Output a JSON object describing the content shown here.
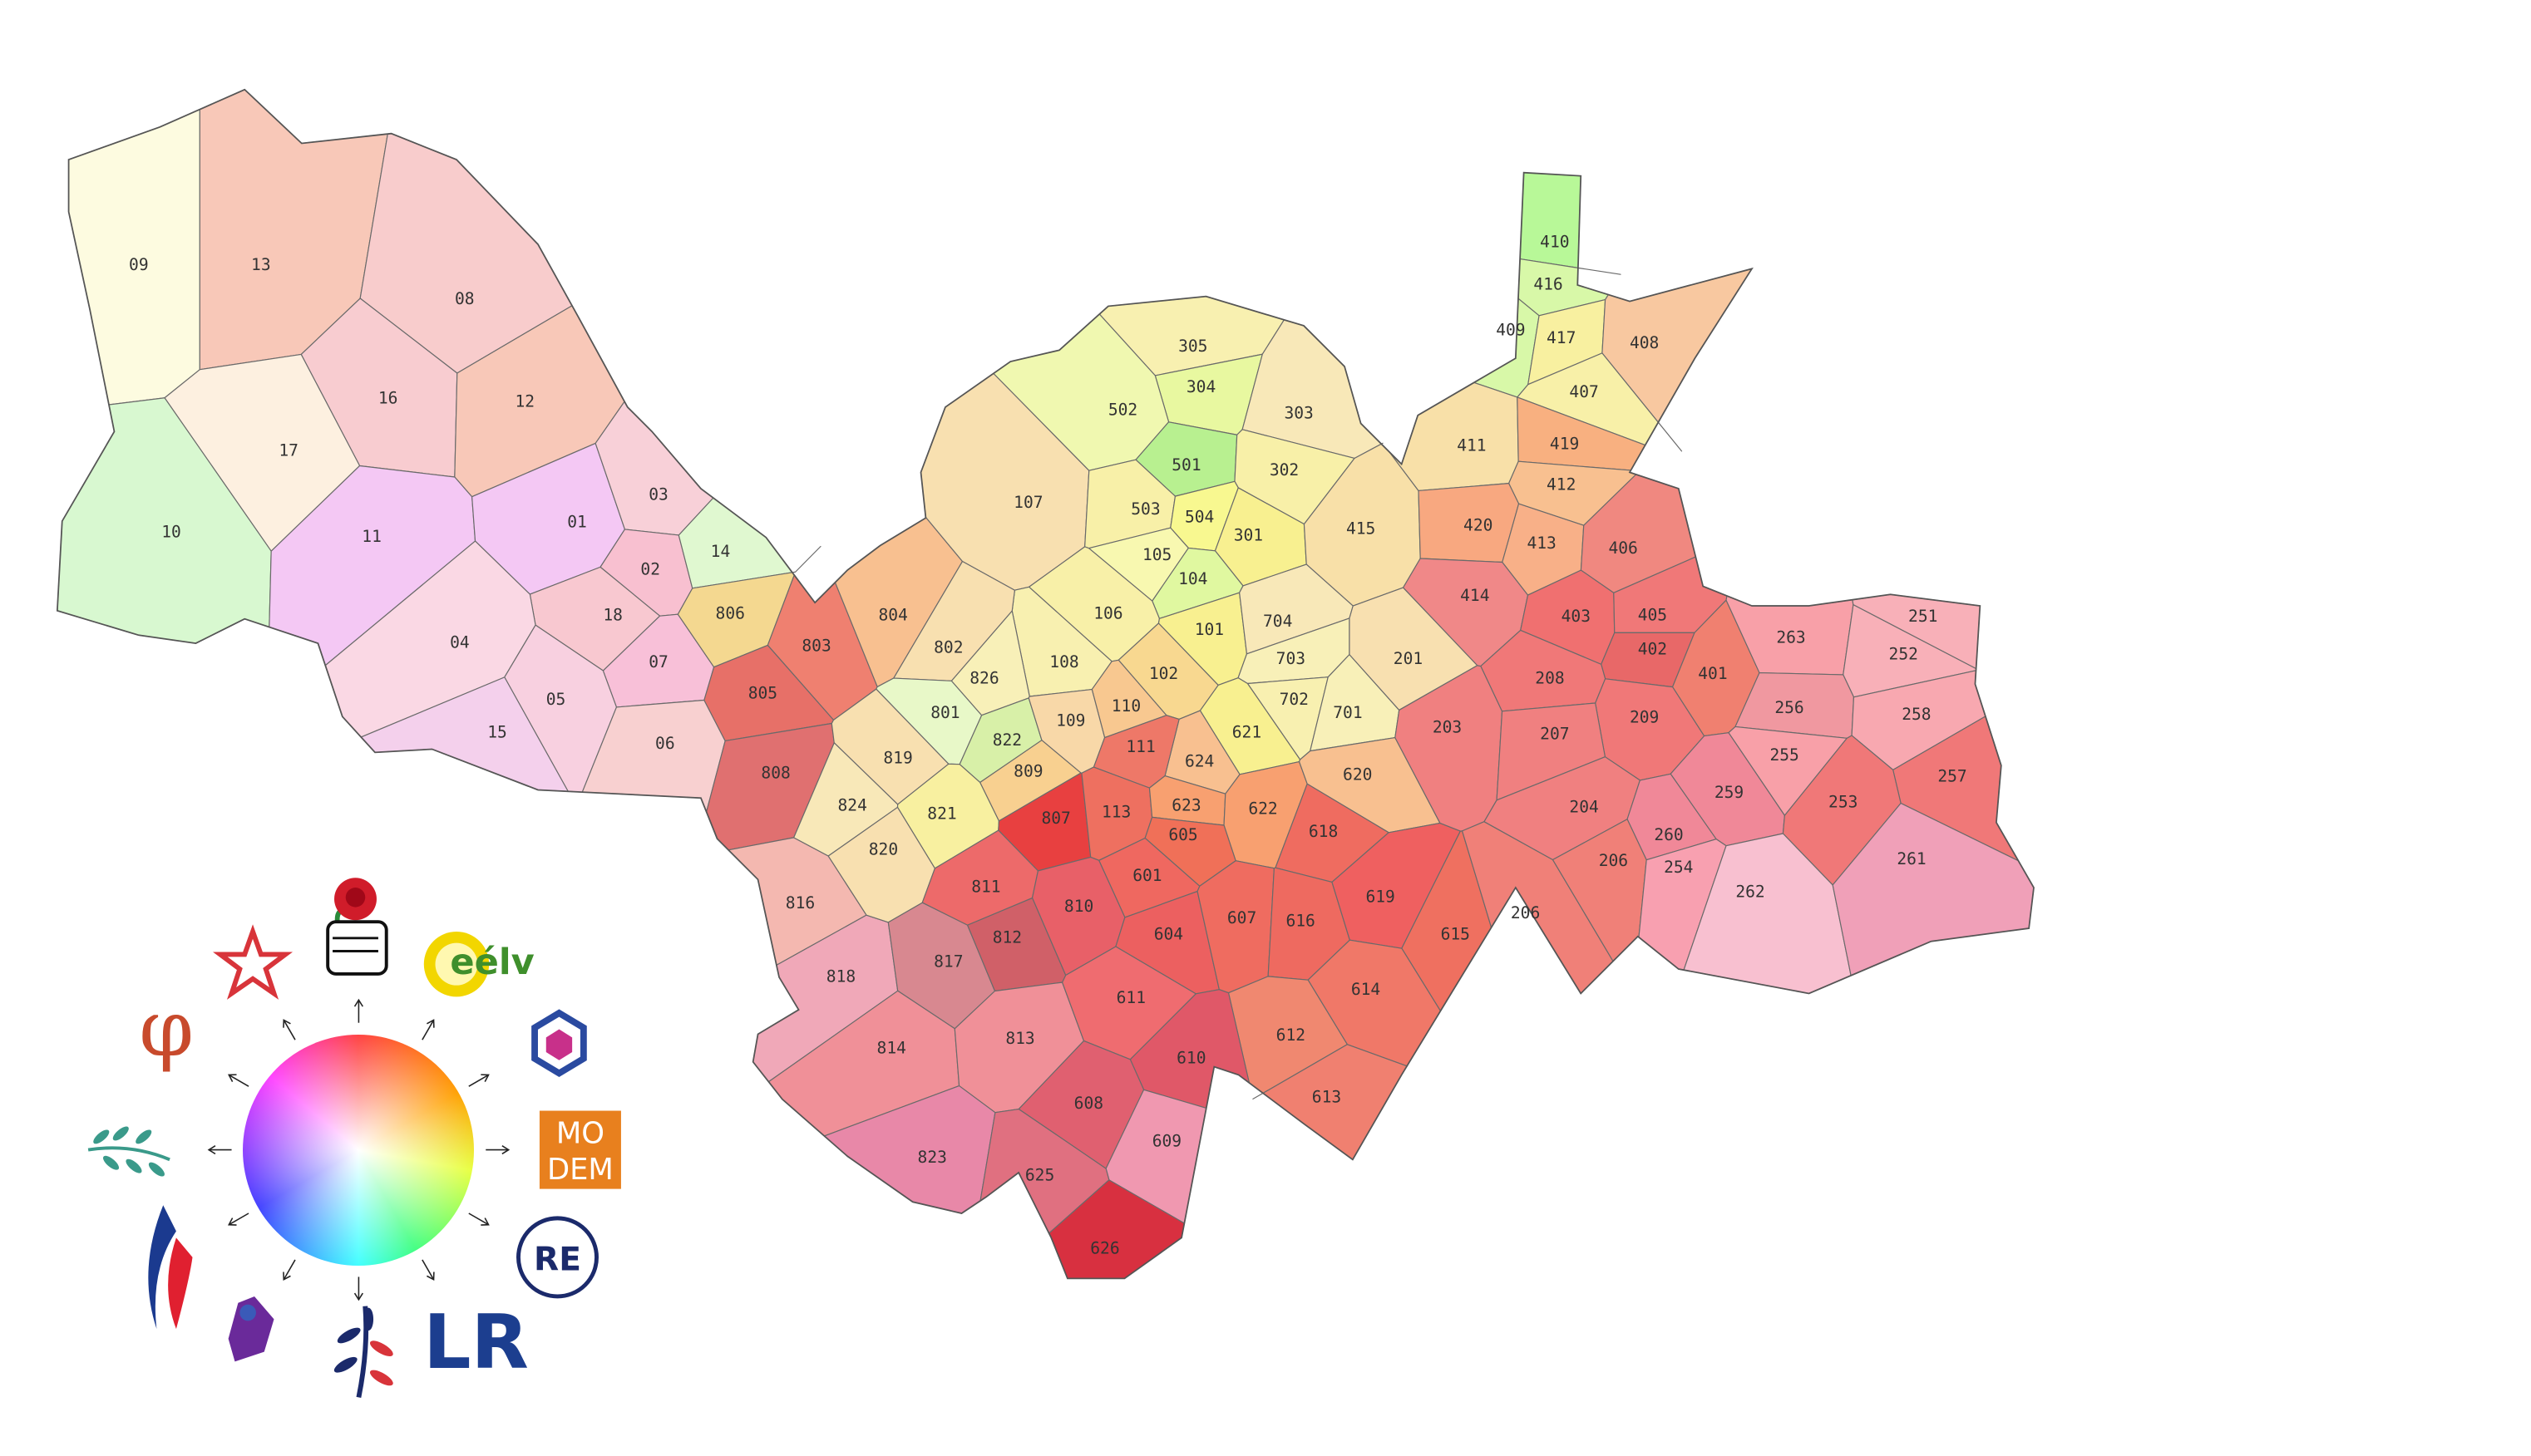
{
  "regions": [
    {
      "label": "09",
      "color": "#fdfbe0"
    },
    {
      "label": "13",
      "color": "#f8c8b8"
    },
    {
      "label": "08",
      "color": "#f8cccc"
    },
    {
      "label": "16",
      "color": "#f8ccd0"
    },
    {
      "label": "12",
      "color": "#f8c8b8"
    },
    {
      "label": "17",
      "color": "#fdf0e0"
    },
    {
      "label": "10",
      "color": "#d8f8d0"
    },
    {
      "label": "11",
      "color": "#f4c8f4"
    },
    {
      "label": "01",
      "color": "#f4c8f4"
    },
    {
      "label": "03",
      "color": "#f8d0d8"
    },
    {
      "label": "02",
      "color": "#f8c0d0"
    },
    {
      "label": "14",
      "color": "#e0f8d0"
    },
    {
      "label": "18",
      "color": "#f8c8d0"
    },
    {
      "label": "04",
      "color": "#fad8e4"
    },
    {
      "label": "07",
      "color": "#f8c0d8"
    },
    {
      "label": "05",
      "color": "#f8d0e0"
    },
    {
      "label": "15",
      "color": "#f4d0ec"
    },
    {
      "label": "06",
      "color": "#f8d0d0"
    },
    {
      "label": "806",
      "color": "#f4d890"
    },
    {
      "label": "803",
      "color": "#ef8070"
    },
    {
      "label": "805",
      "color": "#e77068"
    },
    {
      "label": "804",
      "color": "#f8c090"
    },
    {
      "label": "808",
      "color": "#e07070"
    },
    {
      "label": "816",
      "color": "#f4b8b0"
    },
    {
      "label": "818",
      "color": "#f0a8b8"
    },
    {
      "label": "817",
      "color": "#d88890"
    },
    {
      "label": "812",
      "color": "#d06068"
    },
    {
      "label": "814",
      "color": "#f09098"
    },
    {
      "label": "813",
      "color": "#f09098"
    },
    {
      "label": "823",
      "color": "#e888a8"
    },
    {
      "label": "107",
      "color": "#f8e0b0"
    },
    {
      "label": "305",
      "color": "#f8f0b0"
    },
    {
      "label": "304",
      "color": "#e8f8a0"
    },
    {
      "label": "303",
      "color": "#f8e8b8"
    },
    {
      "label": "502",
      "color": "#f0f8b0"
    },
    {
      "label": "501",
      "color": "#b8f090"
    },
    {
      "label": "302",
      "color": "#f8f0a8"
    },
    {
      "label": "503",
      "color": "#f8f0a8"
    },
    {
      "label": "504",
      "color": "#f8f890"
    },
    {
      "label": "301",
      "color": "#f8f090"
    },
    {
      "label": "415",
      "color": "#f8e0a8"
    },
    {
      "label": "105",
      "color": "#f8f8b0"
    },
    {
      "label": "104",
      "color": "#e0f8a0"
    },
    {
      "label": "106",
      "color": "#f8f0a8"
    },
    {
      "label": "101",
      "color": "#f8f090"
    },
    {
      "label": "704",
      "color": "#f8e8b8"
    },
    {
      "label": "703",
      "color": "#f8f0b8"
    },
    {
      "label": "702",
      "color": "#f8f0b0"
    },
    {
      "label": "701",
      "color": "#f8f0b8"
    },
    {
      "label": "201",
      "color": "#f8e0b0"
    },
    {
      "label": "108",
      "color": "#f8f0b0"
    },
    {
      "label": "102",
      "color": "#f8d890"
    },
    {
      "label": "802",
      "color": "#f8e0b0"
    },
    {
      "label": "826",
      "color": "#f8f0b8"
    },
    {
      "label": "801",
      "color": "#e8f8c8"
    },
    {
      "label": "822",
      "color": "#d8f0a8"
    },
    {
      "label": "110",
      "color": "#f8c890"
    },
    {
      "label": "109",
      "color": "#f8d8a8"
    },
    {
      "label": "621",
      "color": "#f8f090"
    },
    {
      "label": "624",
      "color": "#f8c090"
    },
    {
      "label": "111",
      "color": "#ee7868"
    },
    {
      "label": "819",
      "color": "#f8e0b0"
    },
    {
      "label": "809",
      "color": "#f8d090"
    },
    {
      "label": "824",
      "color": "#f8e8b8"
    },
    {
      "label": "821",
      "color": "#f8f0a0"
    },
    {
      "label": "807",
      "color": "#e84040"
    },
    {
      "label": "113",
      "color": "#ee7060"
    },
    {
      "label": "623",
      "color": "#f8a070"
    },
    {
      "label": "622",
      "color": "#f8a070"
    },
    {
      "label": "620",
      "color": "#f8c090"
    },
    {
      "label": "605",
      "color": "#f07058"
    },
    {
      "label": "618",
      "color": "#ef6c60"
    },
    {
      "label": "820",
      "color": "#f8e0b0"
    },
    {
      "label": "601",
      "color": "#ef6860"
    },
    {
      "label": "811",
      "color": "#ed6a6a"
    },
    {
      "label": "810",
      "color": "#e86068"
    },
    {
      "label": "604",
      "color": "#ec6060"
    },
    {
      "label": "607",
      "color": "#ef6c60"
    },
    {
      "label": "616",
      "color": "#ee6a60"
    },
    {
      "label": "619",
      "color": "#ef6060"
    },
    {
      "label": "615",
      "color": "#ef7060"
    },
    {
      "label": "611",
      "color": "#ef6c70"
    },
    {
      "label": "614",
      "color": "#f07868"
    },
    {
      "label": "612",
      "color": "#f08870"
    },
    {
      "label": "610",
      "color": "#e05868"
    },
    {
      "label": "613",
      "color": "#f08070"
    },
    {
      "label": "608",
      "color": "#e06070"
    },
    {
      "label": "609",
      "color": "#f098b0"
    },
    {
      "label": "625",
      "color": "#e07080"
    },
    {
      "label": "626",
      "color": "#d83040"
    },
    {
      "label": "203",
      "color": "#f08080"
    },
    {
      "label": "206",
      "color": "#f08078"
    },
    {
      "label": "410",
      "color": "#b8f898"
    },
    {
      "label": "416",
      "color": "#d8f8a8"
    },
    {
      "label": "409",
      "color": "#d8f8a8"
    },
    {
      "label": "417",
      "color": "#f8f0a0"
    },
    {
      "label": "408",
      "color": "#f8c8a0"
    },
    {
      "label": "407",
      "color": "#f8f0a8"
    },
    {
      "label": "411",
      "color": "#f8e0a8"
    },
    {
      "label": "419",
      "color": "#f8b080"
    },
    {
      "label": "412",
      "color": "#f8c090"
    },
    {
      "label": "420",
      "color": "#f8a880"
    },
    {
      "label": "413",
      "color": "#f8b088"
    },
    {
      "label": "406",
      "color": "#f08880"
    },
    {
      "label": "414",
      "color": "#f08888"
    },
    {
      "label": "403",
      "color": "#f07070"
    },
    {
      "label": "405",
      "color": "#f07878"
    },
    {
      "label": "402",
      "color": "#e86868"
    },
    {
      "label": "401",
      "color": "#f08070"
    },
    {
      "label": "208",
      "color": "#f07878"
    },
    {
      "label": "209",
      "color": "#f07878"
    },
    {
      "label": "207",
      "color": "#f08080"
    },
    {
      "label": "263",
      "color": "#f8a0a8"
    },
    {
      "label": "251",
      "color": "#f8b0b8"
    },
    {
      "label": "252",
      "color": "#f8b0b8"
    },
    {
      "label": "256",
      "color": "#f098a0"
    },
    {
      "label": "258",
      "color": "#f8a8b0"
    },
    {
      "label": "255",
      "color": "#f8a0a8"
    },
    {
      "label": "257",
      "color": "#f07878"
    },
    {
      "label": "259",
      "color": "#f08898"
    },
    {
      "label": "253",
      "color": "#f07878"
    },
    {
      "label": "204",
      "color": "#f08080"
    },
    {
      "label": "260",
      "color": "#f08898"
    },
    {
      "label": "206",
      "color": "#f08078"
    },
    {
      "label": "254",
      "color": "#f8a0b0"
    },
    {
      "label": "262",
      "color": "#f8c0d0"
    },
    {
      "label": "261",
      "color": "#f0a0b8"
    }
  ],
  "legend": {
    "lfi": "φ",
    "eelv": "eélv",
    "modem_top": "MO",
    "modem_bottom": "DEM",
    "renaissance": "RE",
    "lr": "LR"
  }
}
